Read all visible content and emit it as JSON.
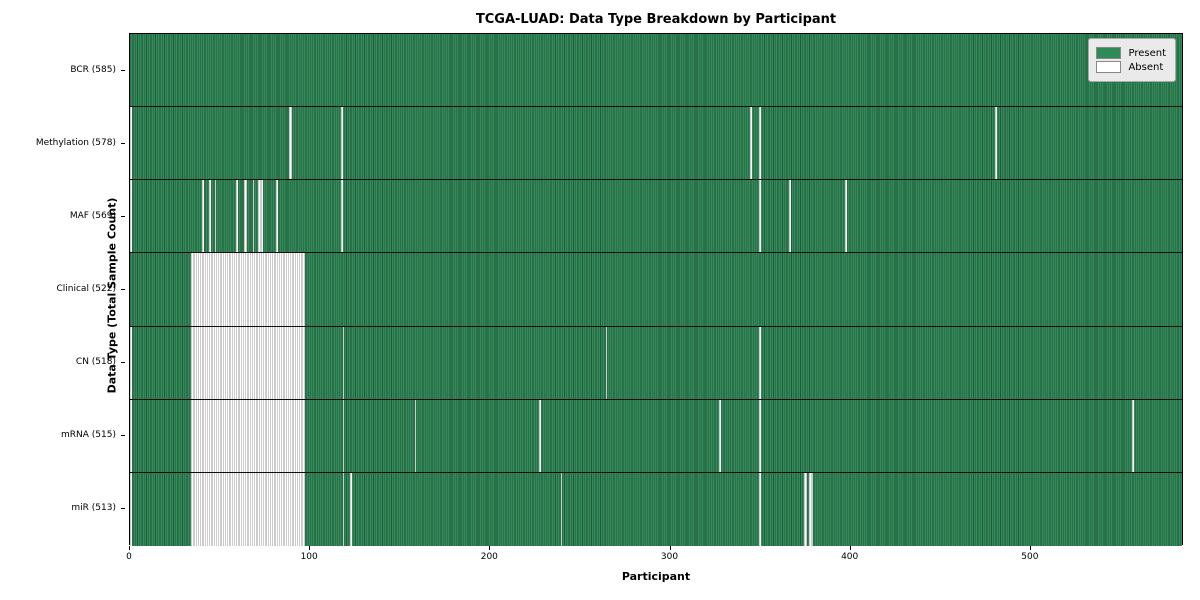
{
  "chart_data": {
    "type": "heatmap",
    "title": "TCGA-LUAD: Data Type Breakdown by Participant",
    "xlabel": "Participant",
    "ylabel": "Data Type (Total Sample Count)",
    "n_participants": 585,
    "x_ticks": [
      0,
      100,
      200,
      300,
      400,
      500
    ],
    "legend": [
      {
        "label": "Present",
        "color": "#2e8b57"
      },
      {
        "label": "Absent",
        "color": "#ffffff"
      }
    ],
    "colors": {
      "present_fill": "#35895a",
      "present_edge": "#1d5c38",
      "absent_fill": "#ffffff",
      "absent_edge": "#9a9a9a"
    },
    "rows": [
      {
        "label": "BCR (585)",
        "count": 585,
        "absent_ranges": []
      },
      {
        "label": "Methylation (578)",
        "count": 578,
        "absent_ranges": [
          [
            0,
            0
          ],
          [
            88,
            89
          ],
          [
            117,
            117
          ],
          [
            344,
            344
          ],
          [
            349,
            349
          ],
          [
            480,
            480
          ]
        ]
      },
      {
        "label": "MAF (569)",
        "count": 569,
        "absent_ranges": [
          [
            0,
            0
          ],
          [
            40,
            40
          ],
          [
            44,
            44
          ],
          [
            47,
            47
          ],
          [
            59,
            59
          ],
          [
            63,
            64
          ],
          [
            68,
            68
          ],
          [
            71,
            73
          ],
          [
            81,
            81
          ],
          [
            117,
            117
          ],
          [
            349,
            349
          ],
          [
            366,
            366
          ],
          [
            397,
            397
          ]
        ]
      },
      {
        "label": "Clinical (522)",
        "count": 522,
        "absent_ranges": [
          [
            34,
            96
          ]
        ]
      },
      {
        "label": "CN (518)",
        "count": 518,
        "absent_ranges": [
          [
            0,
            0
          ],
          [
            34,
            96
          ],
          [
            118,
            118
          ],
          [
            264,
            264
          ],
          [
            349,
            349
          ]
        ]
      },
      {
        "label": "mRNA (515)",
        "count": 515,
        "absent_ranges": [
          [
            0,
            0
          ],
          [
            34,
            96
          ],
          [
            118,
            118
          ],
          [
            158,
            158
          ],
          [
            227,
            227
          ],
          [
            327,
            327
          ],
          [
            349,
            349
          ],
          [
            556,
            556
          ]
        ]
      },
      {
        "label": "miR (513)",
        "count": 513,
        "absent_ranges": [
          [
            0,
            0
          ],
          [
            34,
            96
          ],
          [
            118,
            118
          ],
          [
            122,
            122
          ],
          [
            239,
            239
          ],
          [
            349,
            349
          ],
          [
            374,
            375
          ],
          [
            377,
            378
          ]
        ]
      }
    ]
  }
}
